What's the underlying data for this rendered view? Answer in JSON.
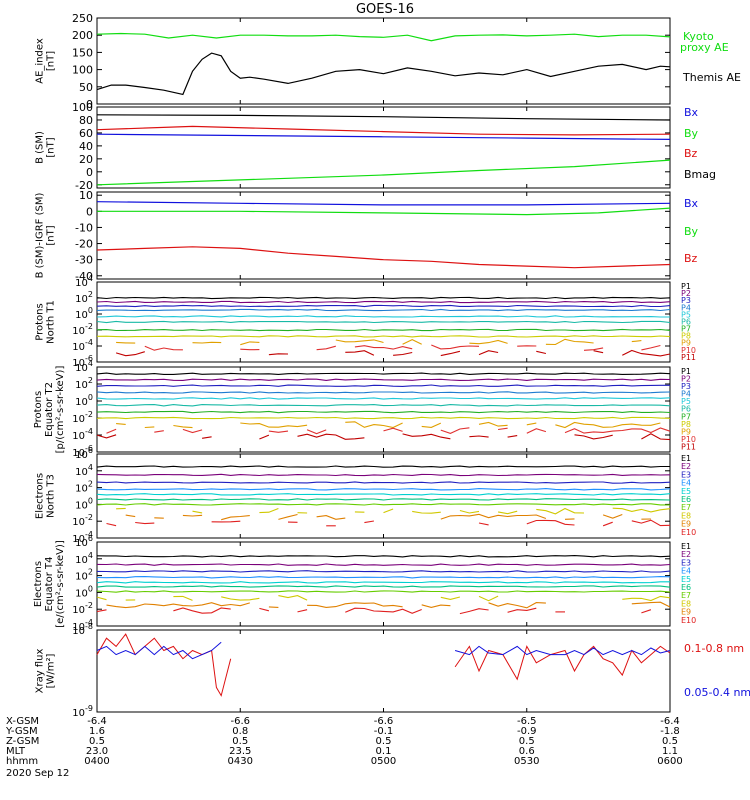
{
  "title": "GOES-16",
  "colors": {
    "black": "#000000",
    "green": "#11dd11",
    "red": "#dd1111",
    "blue": "#1111dd",
    "P": [
      "#000000",
      "#7a007a",
      "#2020c0",
      "#1e7bd0",
      "#1ec8d8",
      "#19b9a6",
      "#22b022",
      "#cccc00",
      "#e0a000",
      "#e03030",
      "#c00000"
    ],
    "E": [
      "#000000",
      "#7a007a",
      "#2020c0",
      "#1e90ff",
      "#00d0d0",
      "#00c080",
      "#66cc00",
      "#d0c800",
      "#e08000",
      "#e02020",
      "#c00000"
    ]
  },
  "chart_data": [
    {
      "type": "line",
      "id": "ae",
      "ylabel": "AE_index\n[nT]",
      "ylim": [
        0,
        250
      ],
      "yticks": [
        "0",
        "50",
        "100",
        "150",
        "200",
        "250"
      ],
      "series": [
        {
          "name": "Kyoto proxy AE",
          "color": "green",
          "x": [
            0,
            5,
            10,
            15,
            20,
            25,
            30,
            35,
            40,
            45,
            50,
            55,
            60,
            65,
            70,
            75,
            80,
            85,
            90,
            95,
            100,
            105,
            110,
            115,
            120
          ],
          "y": [
            203,
            205,
            203,
            192,
            200,
            192,
            200,
            200,
            198,
            198,
            200,
            196,
            194,
            200,
            184,
            198,
            200,
            201,
            198,
            200,
            203,
            196,
            200,
            200,
            195
          ]
        },
        {
          "name": "Themis AE",
          "color": "black",
          "x": [
            0,
            3,
            6,
            10,
            14,
            18,
            20,
            22,
            24,
            26,
            28,
            30,
            32,
            35,
            40,
            45,
            50,
            55,
            60,
            65,
            70,
            75,
            80,
            85,
            90,
            95,
            100,
            105,
            110,
            115,
            118,
            120
          ],
          "y": [
            42,
            55,
            55,
            48,
            40,
            28,
            95,
            130,
            148,
            140,
            95,
            75,
            78,
            72,
            60,
            75,
            95,
            100,
            88,
            105,
            95,
            82,
            90,
            85,
            100,
            80,
            95,
            110,
            115,
            100,
            110,
            108
          ]
        }
      ]
    },
    {
      "type": "line",
      "id": "bsm",
      "ylabel": "B (SM)\n[nT]",
      "ylim": [
        -25,
        100
      ],
      "yticks": [
        "-20",
        "0",
        "20",
        "40",
        "60",
        "80",
        "100"
      ],
      "series": [
        {
          "name": "Bx",
          "color": "blue",
          "x": [
            0,
            30,
            60,
            90,
            120
          ],
          "y": [
            58,
            56,
            54,
            52,
            50
          ]
        },
        {
          "name": "By",
          "color": "green",
          "x": [
            0,
            20,
            40,
            60,
            80,
            100,
            120
          ],
          "y": [
            -20,
            -15,
            -10,
            -5,
            2,
            8,
            18
          ]
        },
        {
          "name": "Bz",
          "color": "red",
          "x": [
            0,
            20,
            40,
            60,
            80,
            100,
            120
          ],
          "y": [
            65,
            70,
            66,
            62,
            58,
            57,
            58
          ]
        },
        {
          "name": "Bmag",
          "color": "black",
          "x": [
            0,
            30,
            60,
            90,
            120
          ],
          "y": [
            88,
            87,
            85,
            82,
            80
          ]
        }
      ]
    },
    {
      "type": "line",
      "id": "bigrf",
      "ylabel": "B (SM)-IGRF (SM)\n[nT]",
      "ylim": [
        -42,
        12
      ],
      "yticks": [
        "-40",
        "-30",
        "-20",
        "-10",
        "0",
        "10"
      ],
      "series": [
        {
          "name": "Bx",
          "color": "blue",
          "x": [
            0,
            30,
            60,
            90,
            120
          ],
          "y": [
            6,
            5,
            4,
            4,
            5
          ]
        },
        {
          "name": "By",
          "color": "green",
          "x": [
            0,
            30,
            60,
            90,
            105,
            120
          ],
          "y": [
            0,
            0,
            -1,
            -2,
            -1,
            2
          ]
        },
        {
          "name": "Bz",
          "color": "red",
          "x": [
            0,
            10,
            20,
            30,
            40,
            50,
            60,
            70,
            80,
            90,
            100,
            110,
            120
          ],
          "y": [
            -24,
            -23,
            -22,
            -23,
            -26,
            -28,
            -30,
            -31,
            -33,
            -34,
            -35,
            -34,
            -33
          ]
        }
      ]
    },
    {
      "type": "line",
      "id": "pn",
      "log": true,
      "ylabel": "Protons\nNorth T1",
      "ylim": [
        -6,
        4
      ],
      "yticks": [
        "10^-6",
        "10^-4",
        "10^-2",
        "10^0",
        "10^2",
        "10^4"
      ],
      "labels": [
        "P1",
        "P2",
        "P3",
        "P4",
        "P5",
        "P6",
        "P7",
        "P8",
        "P9",
        "P10",
        "P11"
      ],
      "levels": [
        2.0,
        1.5,
        1.0,
        0.5,
        -0.3,
        -1.0,
        -2.0,
        -2.8,
        -3.5,
        -4.2,
        -4.9
      ]
    },
    {
      "type": "line",
      "id": "pe",
      "log": true,
      "ylabel": "Protons\nEquator T2\n[p/(cm²-s-sr-keV)]",
      "ylim": [
        -6,
        4
      ],
      "yticks": [
        "10^-6",
        "10^-4",
        "10^-2",
        "10^0",
        "10^2",
        "10^4"
      ],
      "labels": [
        "P1",
        "P2",
        "P3",
        "P4",
        "P5",
        "P6",
        "P7",
        "P8",
        "P9",
        "P10",
        "P11"
      ],
      "levels": [
        3.2,
        2.5,
        1.8,
        1.0,
        0.3,
        -0.5,
        -1.3,
        -2.0,
        -2.8,
        -3.5,
        -4.2
      ]
    },
    {
      "type": "line",
      "id": "en",
      "log": true,
      "ylabel": "Electrons\nNorth T3",
      "ylim": [
        -4,
        6
      ],
      "yticks": [
        "10^-4",
        "10^-2",
        "10^0",
        "10^2",
        "10^4",
        "10^6"
      ],
      "labels": [
        "E1",
        "E2",
        "E3",
        "E4",
        "E5",
        "E6",
        "E7",
        "E8",
        "E9",
        "E10"
      ],
      "levels": [
        4.5,
        3.5,
        2.6,
        1.8,
        1.2,
        0.6,
        0.0,
        -0.8,
        -1.5,
        -2.2
      ]
    },
    {
      "type": "line",
      "id": "ee",
      "log": true,
      "ylabel": "Electrons\nEquator T4\n[e/(cm²-s-sr-keV)]",
      "ylim": [
        -4,
        6
      ],
      "yticks": [
        "10^-4",
        "10^-2",
        "10^0",
        "10^2",
        "10^4",
        "10^6"
      ],
      "labels": [
        "E1",
        "E2",
        "E3",
        "E4",
        "E5",
        "E6",
        "E7",
        "E8",
        "E9",
        "E10"
      ],
      "levels": [
        4.3,
        3.3,
        2.5,
        1.8,
        1.2,
        0.7,
        0.1,
        -0.7,
        -1.5,
        -2.2
      ]
    },
    {
      "type": "line",
      "id": "xray",
      "log": true,
      "ylabel": "Xray flux\n[W/m²]",
      "ylim": [
        -9,
        -8
      ],
      "yticks": [
        "10^-9",
        "10^-8"
      ],
      "series": [
        {
          "name": "0.1-0.8 nm",
          "color": "red",
          "x": [
            0,
            2,
            4,
            6,
            8,
            10,
            12,
            14,
            16,
            18,
            20,
            22,
            24,
            25,
            26,
            28,
            75,
            78,
            80,
            82,
            85,
            88,
            90,
            92,
            95,
            98,
            100,
            102,
            104,
            106,
            108,
            110,
            112,
            114,
            116,
            118,
            120
          ],
          "y": [
            -8.3,
            -8.1,
            -8.2,
            -8.05,
            -8.3,
            -8.2,
            -8.1,
            -8.25,
            -8.2,
            -8.35,
            -8.25,
            -8.3,
            -8.25,
            -8.7,
            -8.8,
            -8.35,
            -8.45,
            -8.2,
            -8.5,
            -8.25,
            -8.3,
            -8.6,
            -8.2,
            -8.4,
            -8.3,
            -8.25,
            -8.5,
            -8.3,
            -8.2,
            -8.35,
            -8.4,
            -8.55,
            -8.25,
            -8.4,
            -8.3,
            -8.2,
            -8.28
          ]
        },
        {
          "name": "0.05-0.4 nm",
          "color": "blue",
          "x": [
            0,
            2,
            4,
            6,
            8,
            10,
            12,
            14,
            16,
            18,
            20,
            22,
            24,
            26,
            75,
            78,
            80,
            82,
            85,
            88,
            90,
            92,
            95,
            98,
            100,
            102,
            104,
            106,
            108,
            110,
            112,
            114,
            116,
            118,
            120
          ],
          "y": [
            -8.25,
            -8.2,
            -8.3,
            -8.25,
            -8.3,
            -8.2,
            -8.3,
            -8.2,
            -8.3,
            -8.25,
            -8.35,
            -8.3,
            -8.25,
            -8.15,
            -8.25,
            -8.3,
            -8.2,
            -8.28,
            -8.3,
            -8.2,
            -8.3,
            -8.25,
            -8.3,
            -8.3,
            -8.25,
            -8.3,
            -8.22,
            -8.3,
            -8.25,
            -8.3,
            -8.25,
            -8.3,
            -8.22,
            -8.28,
            -8.25
          ]
        }
      ]
    }
  ],
  "side_legend": {
    "ae": [
      "Kyoto",
      "proxy AE",
      "Themis AE"
    ],
    "bsm": [
      "Bx",
      "By",
      "Bz",
      "Bmag"
    ],
    "bigrf": [
      "Bx",
      "By",
      "Bz"
    ],
    "xray": [
      "0.1-0.8 nm",
      "0.05-0.4 nm"
    ]
  },
  "footer": {
    "row_labels": [
      "X-GSM",
      "Y-GSM",
      "Z-GSM",
      "MLT",
      "hhmm"
    ],
    "columns": [
      [
        "-6.4",
        "1.6",
        "0.5",
        "23.0",
        "0400"
      ],
      [
        "-6.6",
        "0.8",
        "0.5",
        "23.5",
        "0430"
      ],
      [
        "-6.6",
        "-0.1",
        "0.5",
        "0.1",
        "0500"
      ],
      [
        "-6.5",
        "-0.9",
        "0.5",
        "0.6",
        "0530"
      ],
      [
        "-6.4",
        "-1.8",
        "0.5",
        "1.1",
        "0600"
      ]
    ],
    "date": "2020 Sep 12"
  }
}
